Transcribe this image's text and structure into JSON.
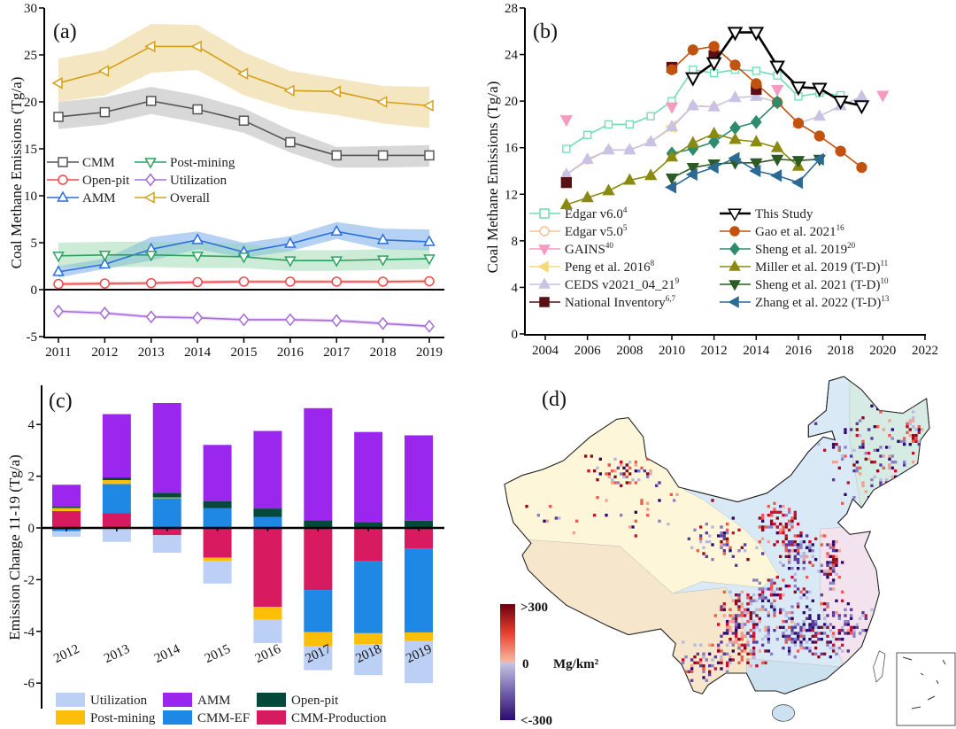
{
  "chart_data": [
    {
      "panel_label": "(a)",
      "type": "line",
      "ylabel": "Coal Methane Emissions (Tg/a)",
      "xlabel": "",
      "x": [
        2011,
        2012,
        2013,
        2014,
        2015,
        2016,
        2017,
        2018,
        2019
      ],
      "xticks": [
        "2011",
        "2012",
        "2013",
        "2014",
        "2015",
        "2016",
        "2017",
        "2018",
        "2019"
      ],
      "ylim": [
        -5,
        30
      ],
      "yticks": [
        "-5",
        "0",
        "5",
        "10",
        "15",
        "20",
        "25",
        "30"
      ],
      "legend_position": "center-left",
      "series": [
        {
          "name": "CMM",
          "marker": "square",
          "color": "#555555",
          "band": "#a8a8a8",
          "values": [
            18.4,
            18.9,
            20.1,
            19.2,
            18.0,
            15.7,
            14.3,
            14.3,
            14.3
          ],
          "lower": [
            17.1,
            17.6,
            18.7,
            17.8,
            16.7,
            14.6,
            13.0,
            13.0,
            13.1
          ],
          "upper": [
            20.0,
            20.5,
            21.6,
            20.7,
            19.3,
            17.0,
            15.2,
            15.3,
            15.4
          ]
        },
        {
          "name": "Open-pit",
          "marker": "circle",
          "color": "#f04848",
          "band": "#f4a0a0",
          "values": [
            0.6,
            0.65,
            0.7,
            0.8,
            0.85,
            0.85,
            0.85,
            0.85,
            0.9
          ],
          "lower": [
            0.4,
            0.45,
            0.5,
            0.6,
            0.65,
            0.65,
            0.65,
            0.65,
            0.7
          ],
          "upper": [
            0.8,
            0.85,
            0.9,
            1.0,
            1.05,
            1.05,
            1.05,
            1.05,
            1.1
          ]
        },
        {
          "name": "AMM",
          "marker": "tri-up",
          "color": "#2a6fdb",
          "band": "#5b9be8",
          "values": [
            1.9,
            2.7,
            4.3,
            5.3,
            4.0,
            4.9,
            6.2,
            5.3,
            5.1
          ],
          "lower": [
            1.3,
            2.2,
            3.1,
            4.3,
            3.4,
            4.1,
            5.4,
            4.3,
            4.2
          ],
          "upper": [
            2.5,
            3.3,
            5.6,
            6.2,
            5.0,
            5.7,
            7.2,
            6.5,
            6.4
          ]
        },
        {
          "name": "Post-mining",
          "marker": "tri-down",
          "color": "#2ca25f",
          "band": "#8fd4a8",
          "values": [
            3.6,
            3.7,
            3.7,
            3.6,
            3.5,
            3.1,
            3.1,
            3.2,
            3.3
          ],
          "lower": [
            2.4,
            2.4,
            2.4,
            2.3,
            2.3,
            2.0,
            2.0,
            2.1,
            2.2
          ],
          "upper": [
            5.0,
            5.1,
            5.1,
            5.0,
            4.9,
            4.2,
            4.2,
            4.3,
            4.4
          ]
        },
        {
          "name": "Utilization",
          "marker": "diamond",
          "color": "#a56bd8",
          "band": "#d6b8f2",
          "values": [
            -2.3,
            -2.5,
            -2.9,
            -3.0,
            -3.2,
            -3.2,
            -3.3,
            -3.6,
            -3.9
          ],
          "lower": [
            -2.5,
            -2.7,
            -3.1,
            -3.2,
            -3.4,
            -3.4,
            -3.5,
            -3.8,
            -4.1
          ],
          "upper": [
            -2.1,
            -2.3,
            -2.7,
            -2.8,
            -3.0,
            -3.0,
            -3.1,
            -3.4,
            -3.7
          ]
        },
        {
          "name": "Overall",
          "marker": "tri-left",
          "color": "#d4a017",
          "band": "#e8c878",
          "values": [
            22.0,
            23.3,
            25.9,
            25.9,
            23.0,
            21.2,
            21.1,
            20.0,
            19.6
          ],
          "lower": [
            20.0,
            20.7,
            23.1,
            23.4,
            20.7,
            19.2,
            18.6,
            17.7,
            17.2
          ],
          "upper": [
            24.6,
            25.5,
            28.3,
            28.2,
            25.3,
            23.3,
            22.5,
            21.7,
            21.6
          ]
        }
      ]
    },
    {
      "panel_label": "(b)",
      "type": "line",
      "ylabel": "Coal Methane Emissions (Tg/a)",
      "xlabel": "",
      "xlim": [
        2003,
        2022
      ],
      "ylim": [
        0,
        28
      ],
      "xticks": [
        "2004",
        "2006",
        "2008",
        "2010",
        "2012",
        "2014",
        "2016",
        "2018",
        "2020",
        "2022"
      ],
      "yticks": [
        "0",
        "4",
        "8",
        "12",
        "16",
        "20",
        "24",
        "28"
      ],
      "legend_position": "bottom",
      "series": [
        {
          "name": "Edgar v6.0",
          "sup": "4",
          "marker": "square",
          "filled": false,
          "line": true,
          "color": "#6fdcb4",
          "points": [
            [
              2005,
              15.9
            ],
            [
              2006,
              17.1
            ],
            [
              2007,
              18.0
            ],
            [
              2008,
              18.0
            ],
            [
              2009,
              18.7
            ],
            [
              2010,
              20.0
            ],
            [
              2011,
              22.7
            ],
            [
              2012,
              22.4
            ],
            [
              2013,
              22.7
            ],
            [
              2014,
              22.6
            ],
            [
              2015,
              22.2
            ],
            [
              2016,
              20.4
            ],
            [
              2017,
              20.7
            ],
            [
              2018,
              20.5
            ]
          ]
        },
        {
          "name": "Edgar v5.0",
          "sup": "5",
          "marker": "circle",
          "filled": false,
          "line": true,
          "color": "#f6c29a",
          "points": [
            [
              2005,
              13.7
            ],
            [
              2006,
              14.9
            ],
            [
              2007,
              15.8
            ],
            [
              2008,
              15.8
            ],
            [
              2009,
              16.5
            ],
            [
              2010,
              17.7
            ],
            [
              2011,
              19.6
            ],
            [
              2012,
              19.5
            ]
          ]
        },
        {
          "name": "GAINS",
          "sup": "40",
          "marker": "tri-down",
          "filled": true,
          "line": false,
          "color": "#f59ac0",
          "points": [
            [
              2005,
              18.4
            ],
            [
              2010,
              19.5
            ],
            [
              2015,
              21.0
            ],
            [
              2020,
              20.5
            ]
          ]
        },
        {
          "name": "Peng et al. 2016",
          "sup": "8",
          "marker": "tri-left",
          "filled": true,
          "line": true,
          "color": "#f8d878",
          "points": [
            [
              2010,
              17.8
            ]
          ]
        },
        {
          "name": "CEDS v2021_04_21",
          "sup": "9",
          "marker": "tri-up",
          "filled": true,
          "line": true,
          "color": "#c9c2e4",
          "points": [
            [
              2005,
              13.7
            ],
            [
              2006,
              15.0
            ],
            [
              2007,
              15.8
            ],
            [
              2008,
              15.8
            ],
            [
              2009,
              16.5
            ],
            [
              2010,
              17.8
            ],
            [
              2011,
              19.6
            ],
            [
              2012,
              19.5
            ],
            [
              2013,
              20.3
            ],
            [
              2014,
              20.4
            ],
            [
              2015,
              19.9
            ],
            [
              2016,
              18.1
            ],
            [
              2017,
              18.7
            ],
            [
              2018,
              19.6
            ],
            [
              2019,
              20.4
            ]
          ]
        },
        {
          "name": "National Inventory",
          "sup": "6,7",
          "marker": "square",
          "filled": true,
          "line": false,
          "color": "#5a0e16",
          "points": [
            [
              2005,
              13.0
            ],
            [
              2010,
              22.9
            ],
            [
              2012,
              23.9
            ],
            [
              2014,
              21.0
            ]
          ]
        },
        {
          "name": "Gao et al. 2021",
          "sup": "16",
          "marker": "circle",
          "filled": true,
          "line": true,
          "color": "#c2520f",
          "points": [
            [
              2010,
              22.7
            ],
            [
              2011,
              24.4
            ],
            [
              2012,
              24.7
            ],
            [
              2013,
              23.1
            ],
            [
              2014,
              21.5
            ],
            [
              2015,
              19.9
            ],
            [
              2016,
              18.1
            ],
            [
              2017,
              17.0
            ],
            [
              2018,
              15.7
            ],
            [
              2019,
              14.3
            ]
          ]
        },
        {
          "name": "Sheng et al. 2019",
          "sup": "20",
          "marker": "diamond",
          "filled": true,
          "line": true,
          "color": "#2e8b6e",
          "points": [
            [
              2010,
              15.5
            ],
            [
              2011,
              15.9
            ],
            [
              2012,
              16.5
            ],
            [
              2013,
              17.7
            ],
            [
              2014,
              18.2
            ],
            [
              2015,
              19.9
            ]
          ]
        },
        {
          "name": "Miller et al. 2019 (T-D)",
          "sup": "11",
          "marker": "tri-up",
          "filled": true,
          "line": true,
          "color": "#8a8a10",
          "points": [
            [
              2005,
              11.1
            ],
            [
              2006,
              11.7
            ],
            [
              2007,
              12.3
            ],
            [
              2008,
              13.2
            ],
            [
              2009,
              13.6
            ],
            [
              2010,
              15.2
            ],
            [
              2011,
              16.4
            ],
            [
              2012,
              17.2
            ],
            [
              2013,
              16.7
            ],
            [
              2014,
              16.5
            ],
            [
              2015,
              16.0
            ],
            [
              2016,
              14.4
            ]
          ]
        },
        {
          "name": "Sheng et al. 2021 (T-D)",
          "sup": "10",
          "marker": "tri-down",
          "filled": true,
          "line": true,
          "color": "#2d5a27",
          "points": [
            [
              2010,
              13.4
            ],
            [
              2011,
              14.3
            ],
            [
              2012,
              14.6
            ],
            [
              2013,
              14.7
            ],
            [
              2014,
              14.7
            ],
            [
              2015,
              15.0
            ],
            [
              2016,
              14.9
            ],
            [
              2017,
              15.0
            ]
          ]
        },
        {
          "name": "Zhang et al. 2022 (T-D)",
          "sup": "13",
          "marker": "tri-left",
          "filled": true,
          "line": true,
          "color": "#2c6a94",
          "points": [
            [
              2010,
              12.6
            ],
            [
              2011,
              13.7
            ],
            [
              2012,
              14.3
            ],
            [
              2013,
              15.1
            ],
            [
              2014,
              14.0
            ],
            [
              2015,
              13.6
            ],
            [
              2016,
              13.0
            ],
            [
              2017,
              15.0
            ]
          ]
        },
        {
          "name": "This Study",
          "sup": "",
          "marker": "tri-down",
          "filled": false,
          "line": true,
          "color": "#000000",
          "points": [
            [
              2011,
              22.0
            ],
            [
              2012,
              23.3
            ],
            [
              2013,
              25.9
            ],
            [
              2014,
              25.9
            ],
            [
              2015,
              23.0
            ],
            [
              2016,
              21.2
            ],
            [
              2017,
              21.1
            ],
            [
              2018,
              20.0
            ],
            [
              2019,
              19.6
            ]
          ]
        }
      ]
    },
    {
      "panel_label": "(c)",
      "type": "bar",
      "stacked": true,
      "ylabel": "Emission Change 11-19 (Tg/a)",
      "xlabel": "",
      "categories": [
        "2012",
        "2013",
        "2014",
        "2015",
        "2016",
        "2017",
        "2018",
        "2019"
      ],
      "ylim": [
        -7,
        5.3
      ],
      "yticks": [
        "-6",
        "-4",
        "-2",
        "0",
        "2",
        "4"
      ],
      "legend_position": "bottom",
      "series": [
        {
          "name": "CMM-Production",
          "color": "#d81b60",
          "values": [
            0.65,
            0.58,
            -0.28,
            -1.15,
            -3.05,
            -2.4,
            -1.29,
            -0.8
          ]
        },
        {
          "name": "CMM-EF",
          "color": "#1f88e5",
          "values": [
            -0.12,
            1.12,
            1.15,
            0.76,
            0.42,
            -1.63,
            -2.78,
            -3.24
          ]
        },
        {
          "name": "Post-mining",
          "color": "#fbbf0a",
          "values": [
            0.12,
            0.15,
            0.03,
            -0.13,
            -0.5,
            -0.55,
            -0.42,
            -0.33
          ]
        },
        {
          "name": "Open-pit",
          "color": "#04493a",
          "values": [
            0.05,
            0.1,
            0.18,
            0.27,
            0.33,
            0.3,
            0.23,
            0.28
          ]
        },
        {
          "name": "AMM",
          "color": "#9b27ef",
          "values": [
            0.85,
            2.45,
            3.47,
            2.18,
            3.0,
            4.33,
            3.48,
            3.3
          ]
        },
        {
          "name": "Utilization",
          "color": "#bcd0f5",
          "values": [
            -0.22,
            -0.54,
            -0.68,
            -0.87,
            -0.9,
            -0.92,
            -1.2,
            -1.63
          ]
        }
      ]
    }
  ],
  "map": {
    "panel_label": "(d)",
    "colorbar": {
      "max_label": ">300",
      "mid_label": "0",
      "min_label": "<-300",
      "unit": "Mg/km²"
    },
    "colors": {
      "positive": "#c8102e",
      "negative": "#3a1a8a"
    }
  }
}
